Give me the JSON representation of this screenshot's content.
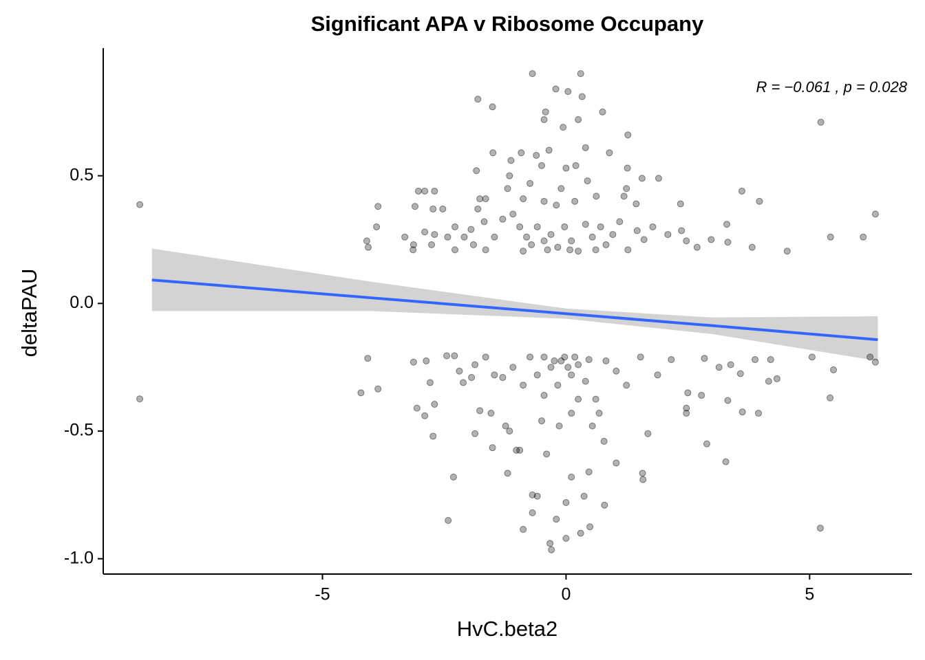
{
  "chart_data": {
    "type": "scatter",
    "title": "Significant APA v Ribosome Occupany",
    "x_label": "HvC.beta2",
    "y_label": "deltaPAU",
    "annotation": "R = −0.061 , p = 0.028",
    "xlim": [
      -9.5,
      7.1
    ],
    "ylim": [
      -1.06,
      1.0
    ],
    "xticks": [
      -5,
      0,
      5
    ],
    "yticks": [
      {
        "value": -1.0,
        "label": "-1.0"
      },
      {
        "value": -0.5,
        "label": "-0.5"
      },
      {
        "value": 0.0,
        "label": "0.0"
      },
      {
        "value": 0.5,
        "label": "0.5"
      }
    ],
    "point_color": "#000000",
    "fit_color": "#3366ff",
    "band_color": "#d3d3d3",
    "x": [
      -8.75,
      -8.75,
      -0.69,
      0.3,
      -0.21,
      0.04,
      0.33,
      -1.81,
      -1.51,
      -0.42,
      0.75,
      -0.45,
      0.25,
      -0.06,
      1.27,
      5.23,
      0.4,
      -0.35,
      -1.5,
      -0.92,
      0.89,
      -1.13,
      -0.61,
      -1.84,
      -0.5,
      0,
      0.2,
      1.26,
      -1.16,
      1.9,
      1.56,
      -0.74,
      0.44,
      3.61,
      -3.03,
      -2.9,
      -2.7,
      1.24,
      -1.2,
      -0.1,
      0.62,
      -1.77,
      -1.65,
      1.19,
      3.97,
      2.35,
      -3.86,
      -3.1,
      -2.73,
      -2.53,
      1.44,
      -0.88,
      -0.45,
      -3.89,
      -4.09,
      -4.06,
      -3.31,
      -3.13,
      -3.14,
      -2.9,
      -2.76,
      -2.7,
      -2.43,
      -2.28,
      -2.28,
      -2.09,
      -1.95,
      -1.9,
      -1.81,
      -1.68,
      -1.65,
      -1.47,
      -1.3,
      -1.09,
      -0.95,
      -0.81,
      -0.71,
      -0.59,
      -0.45,
      -0.31,
      -0.17,
      -0.03,
      0.11,
      0.25,
      0.4,
      0.54,
      0.71,
      0.82,
      0.96,
      1.1,
      1.27,
      1.46,
      1.6,
      1.78,
      2.09,
      2.37,
      2.47,
      2.69,
      2.98,
      3.3,
      3.32,
      3.82,
      4.54,
      5.43,
      6.1,
      6.35,
      -0.88,
      -0.38,
      0.08,
      0.61,
      -0.2,
      0.18,
      -4.07,
      -4.21,
      -3.86,
      -3.13,
      -2.87,
      -3.06,
      -2.9,
      -2.7,
      -2.73,
      -2.79,
      -2.42,
      -2.31,
      -2.45,
      -2.29,
      -2.19,
      -2.11,
      -1.87,
      -1.77,
      -1.87,
      -1.54,
      -1.51,
      -1.47,
      -1.24,
      -1.2,
      -1.16,
      -1.02,
      -0.95,
      -0.88,
      -0.69,
      -0.59,
      -0.69,
      -0.5,
      -0.4,
      -0.33,
      -0.3,
      -0.2,
      0,
      0,
      0.3,
      0.49,
      0.37,
      0.11,
      0.47,
      0.79,
      0.78,
      1.03,
      1.57,
      1.58,
      1.68,
      2.89,
      3.28,
      3.32,
      3.62,
      3.95,
      3.88,
      4.2,
      4.33,
      4.16,
      5.05,
      5.42,
      5.49,
      5.22,
      6.24,
      6.35,
      2.47,
      2.47,
      2.78,
      2.84,
      3.14,
      3.38,
      3.58,
      2.5,
      2.16,
      1.88,
      1.53,
      1.24,
      1.03,
      0.82,
      0.61,
      0.4,
      0.25,
      0.11,
      -0.03,
      -0.17,
      -0.31,
      -0.45,
      -0.59,
      -0.74,
      -0.88,
      -1.09,
      -1.3,
      -1.65,
      -1.94,
      0.11,
      -0.14,
      0.54,
      0.68,
      0.25,
      -0.45,
      -0.1,
      0.18,
      0.47,
      0.04,
      -0.24
    ],
    "y": [
      0.387,
      -0.374,
      0.9,
      0.9,
      0.84,
      0.83,
      0.81,
      0.8,
      0.77,
      0.75,
      0.75,
      0.72,
      0.72,
      0.69,
      0.66,
      0.71,
      0.61,
      0.6,
      0.59,
      0.59,
      0.59,
      0.56,
      0.58,
      0.52,
      0.54,
      0.53,
      0.54,
      0.53,
      0.5,
      0.49,
      0.49,
      0.47,
      0.48,
      0.44,
      0.44,
      0.44,
      0.44,
      0.45,
      0.45,
      0.45,
      0.42,
      0.41,
      0.41,
      0.42,
      0.4,
      0.39,
      0.38,
      0.38,
      0.37,
      0.37,
      0.39,
      0.41,
      0.4,
      0.3,
      0.245,
      0.22,
      0.26,
      0.23,
      0.21,
      0.28,
      0.23,
      0.27,
      0.26,
      0.3,
      0.21,
      0.26,
      0.29,
      0.23,
      0.37,
      0.32,
      0.21,
      0.26,
      0.33,
      0.35,
      0.3,
      0.26,
      0.23,
      0.3,
      0.245,
      0.27,
      0.22,
      0.3,
      0.245,
      0.205,
      0.31,
      0.26,
      0.3,
      0.23,
      0.27,
      0.32,
      0.21,
      0.285,
      0.25,
      0.3,
      0.27,
      0.285,
      0.245,
      0.22,
      0.25,
      0.31,
      0.24,
      0.22,
      0.205,
      0.26,
      0.26,
      0.35,
      0.205,
      0.21,
      0.21,
      0.21,
      0.385,
      0.4,
      -0.215,
      -0.35,
      -0.335,
      -0.23,
      -0.225,
      -0.41,
      -0.44,
      -0.395,
      -0.52,
      -0.31,
      -0.85,
      -0.68,
      -0.205,
      -0.205,
      -0.265,
      -0.31,
      -0.24,
      -0.42,
      -0.51,
      -0.43,
      -0.565,
      -0.28,
      -0.48,
      -0.665,
      -0.5,
      -0.575,
      -0.575,
      -0.885,
      -0.75,
      -0.755,
      -0.82,
      -0.46,
      -0.59,
      -0.94,
      -0.965,
      -0.845,
      -0.78,
      -0.92,
      -0.9,
      -0.875,
      -0.755,
      -0.68,
      -0.66,
      -0.79,
      -0.54,
      -0.625,
      -0.665,
      -0.69,
      -0.51,
      -0.55,
      -0.62,
      -0.38,
      -0.425,
      -0.43,
      -0.22,
      -0.22,
      -0.295,
      -0.305,
      -0.21,
      -0.37,
      -0.26,
      -0.88,
      -0.21,
      -0.23,
      -0.43,
      -0.41,
      -0.36,
      -0.215,
      -0.25,
      -0.24,
      -0.275,
      -0.35,
      -0.22,
      -0.28,
      -0.21,
      -0.32,
      -0.265,
      -0.225,
      -0.375,
      -0.305,
      -0.24,
      -0.28,
      -0.21,
      -0.32,
      -0.25,
      -0.36,
      -0.28,
      -0.21,
      -0.32,
      -0.25,
      -0.29,
      -0.21,
      -0.29,
      -0.43,
      -0.48,
      -0.48,
      -0.43,
      -0.375,
      -0.21,
      -0.225,
      -0.21,
      -0.22,
      -0.25,
      -0.225
    ],
    "fit": {
      "x": [
        -8.5,
        -4,
        0,
        3,
        6.4
      ],
      "y": [
        0.092,
        0.022,
        -0.04,
        -0.087,
        -0.142
      ],
      "upper": [
        0.215,
        0.085,
        -0.02,
        -0.055,
        -0.05
      ],
      "lower": [
        -0.03,
        -0.03,
        -0.06,
        -0.12,
        -0.225
      ]
    }
  }
}
